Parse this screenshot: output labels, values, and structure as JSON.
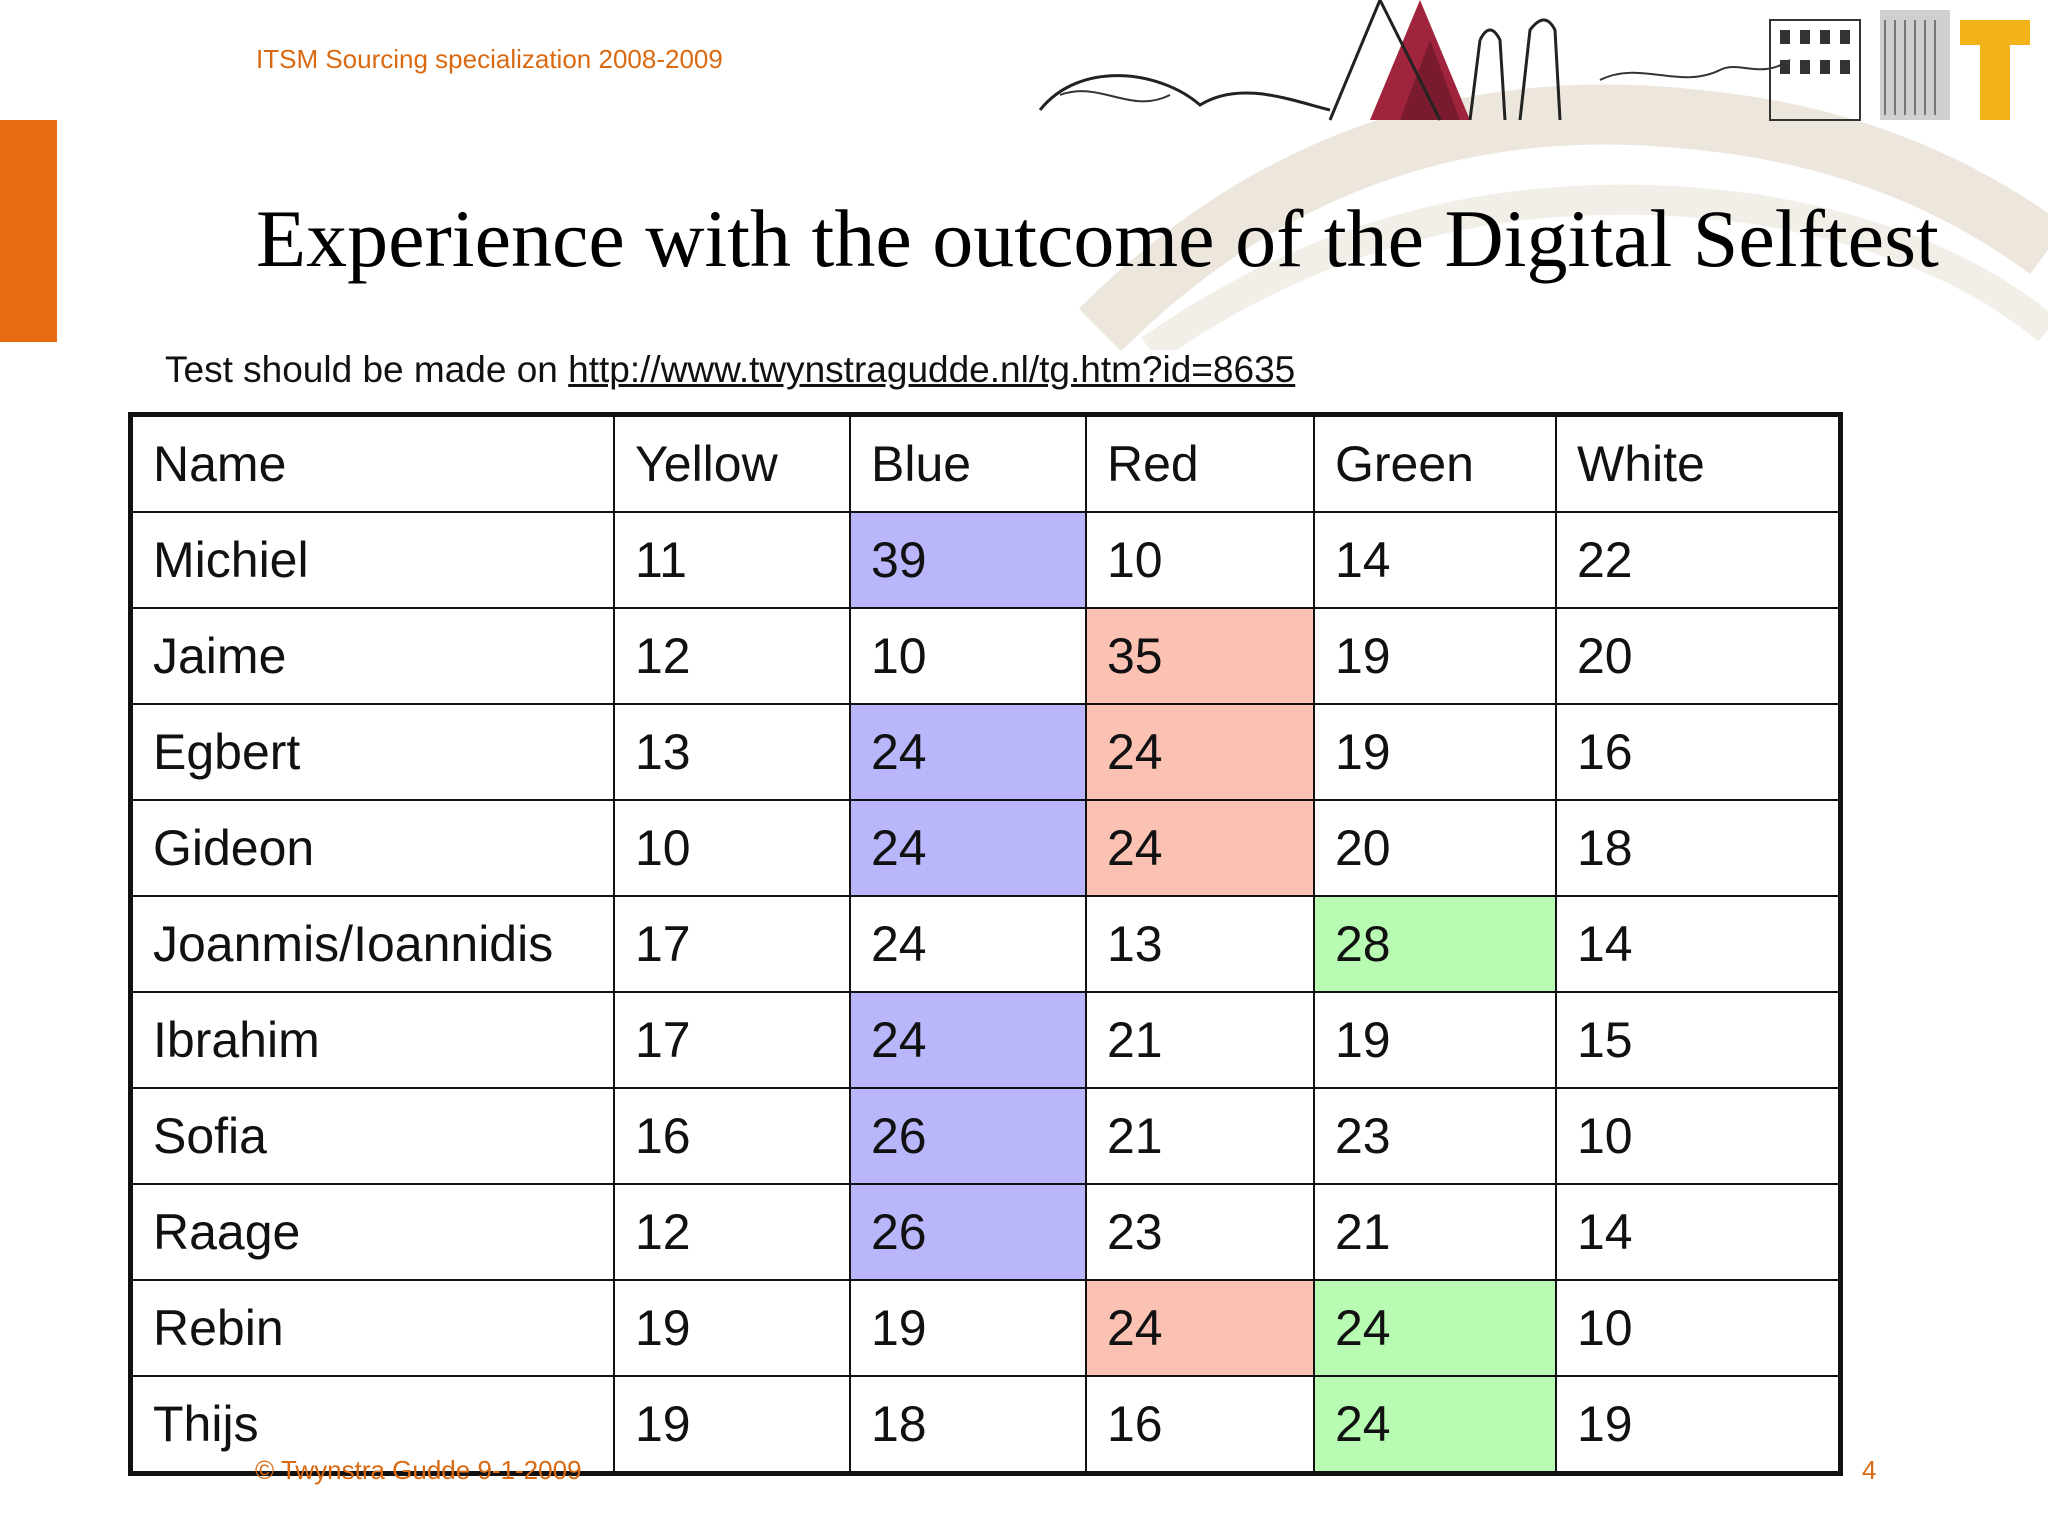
{
  "header": {
    "course": "ITSM Sourcing specialization 2008-2009"
  },
  "title": "Experience with the outcome of the Digital Selftest",
  "subtitle": {
    "prefix": "Test should be made on ",
    "link": "http://www.twynstragudde.nl/tg.htm?id=8635"
  },
  "table": {
    "headers": [
      "Name",
      "Yellow",
      "Blue",
      "Red",
      "Green",
      "White"
    ],
    "rows": [
      [
        "Michiel",
        "11",
        "39",
        "10",
        "14",
        "22"
      ],
      [
        "Jaime",
        "12",
        "10",
        "35",
        "19",
        "20"
      ],
      [
        "Egbert",
        "13",
        "24",
        "24",
        "19",
        "16"
      ],
      [
        "Gideon",
        "10",
        "24",
        "24",
        "20",
        "18"
      ],
      [
        "Joanmis/Ioannidis",
        "17",
        "24",
        "13",
        "28",
        "14"
      ],
      [
        "Ibrahim",
        "17",
        "24",
        "21",
        "19",
        "15"
      ],
      [
        "Sofia",
        "16",
        "26",
        "21",
        "23",
        "10"
      ],
      [
        "Raage",
        "12",
        "26",
        "23",
        "21",
        "14"
      ],
      [
        "Rebin",
        "19",
        "19",
        "24",
        "24",
        "10"
      ],
      [
        "Thijs",
        "19",
        "18",
        "16",
        "24",
        "19"
      ]
    ],
    "highlights": {
      "Michiel": [
        "Blue"
      ],
      "Jaime": [
        "Red"
      ],
      "Egbert": [
        "Blue",
        "Red"
      ],
      "Gideon": [
        "Blue",
        "Red"
      ],
      "Joanmis/Ioannidis": [
        "Green"
      ],
      "Ibrahim": [
        "Blue"
      ],
      "Sofia": [
        "Blue"
      ],
      "Raage": [
        "Blue"
      ],
      "Rebin": [
        "Red",
        "Green"
      ],
      "Thijs": [
        "Green"
      ]
    }
  },
  "colors": {
    "accent": "#e86c12",
    "blue_highlight": "#b9b6fb",
    "red_highlight": "#fbc2b4",
    "green_highlight": "#b8fbb2"
  },
  "footer": {
    "copyright": "© Twynstra Gudde  9-1-2009",
    "page_number": "4"
  }
}
